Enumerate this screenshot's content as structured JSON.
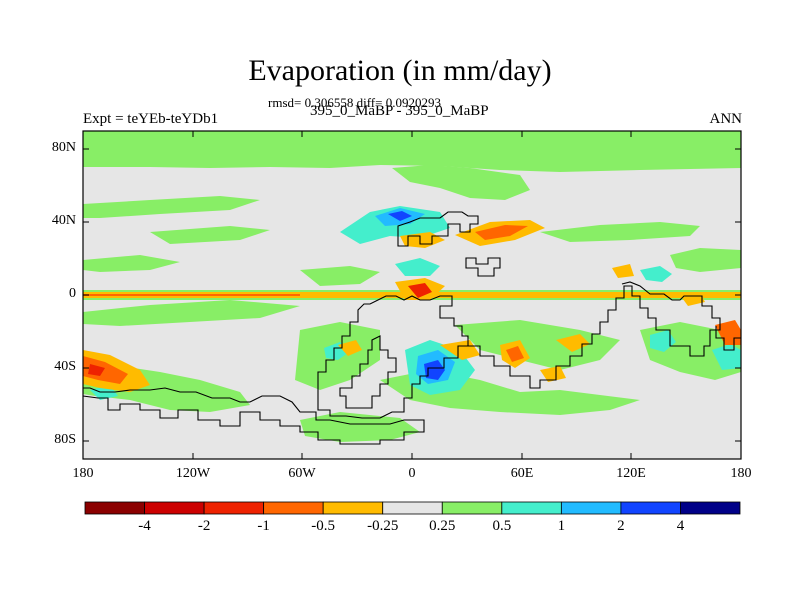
{
  "title": "Evaporation (in mm/day)",
  "stats_text": "rmsd= 0.306558 diff= 0.0920293",
  "experiment_diff": "395_0_MaBP - 395_0_MaBP",
  "left_label": "Expt = teYEb-teYDb1",
  "right_label": "ANN",
  "map": {
    "projection": "cylindrical equidistant",
    "lon_range": [
      -180,
      180
    ],
    "lat_range": [
      -90,
      90
    ],
    "y_ticks": [
      "80N",
      "40N",
      "0",
      "40S",
      "80S"
    ],
    "x_ticks": [
      "180",
      "120W",
      "60W",
      "0",
      "60E",
      "120E",
      "180"
    ]
  },
  "colorbar": {
    "colors": [
      "#8b0000",
      "#cc0000",
      "#ee2200",
      "#ff6600",
      "#ffbb00",
      "#e6e6e6",
      "#88ee66",
      "#44eecc",
      "#22bbff",
      "#1144ff",
      "#000088"
    ],
    "labels": [
      "-4",
      "-2",
      "-1",
      "-0.5",
      "-0.25",
      "0.25",
      "0.5",
      "1",
      "2",
      "4"
    ]
  },
  "colors": {
    "background_field": "#e6e6e6",
    "green": "#88ee66",
    "cyan": "#44eecc",
    "lightblue": "#22bbff",
    "blue": "#1144ff",
    "orange": "#ffbb00",
    "darkorange": "#ff6600",
    "red": "#ee2200",
    "coast": "#000000"
  }
}
